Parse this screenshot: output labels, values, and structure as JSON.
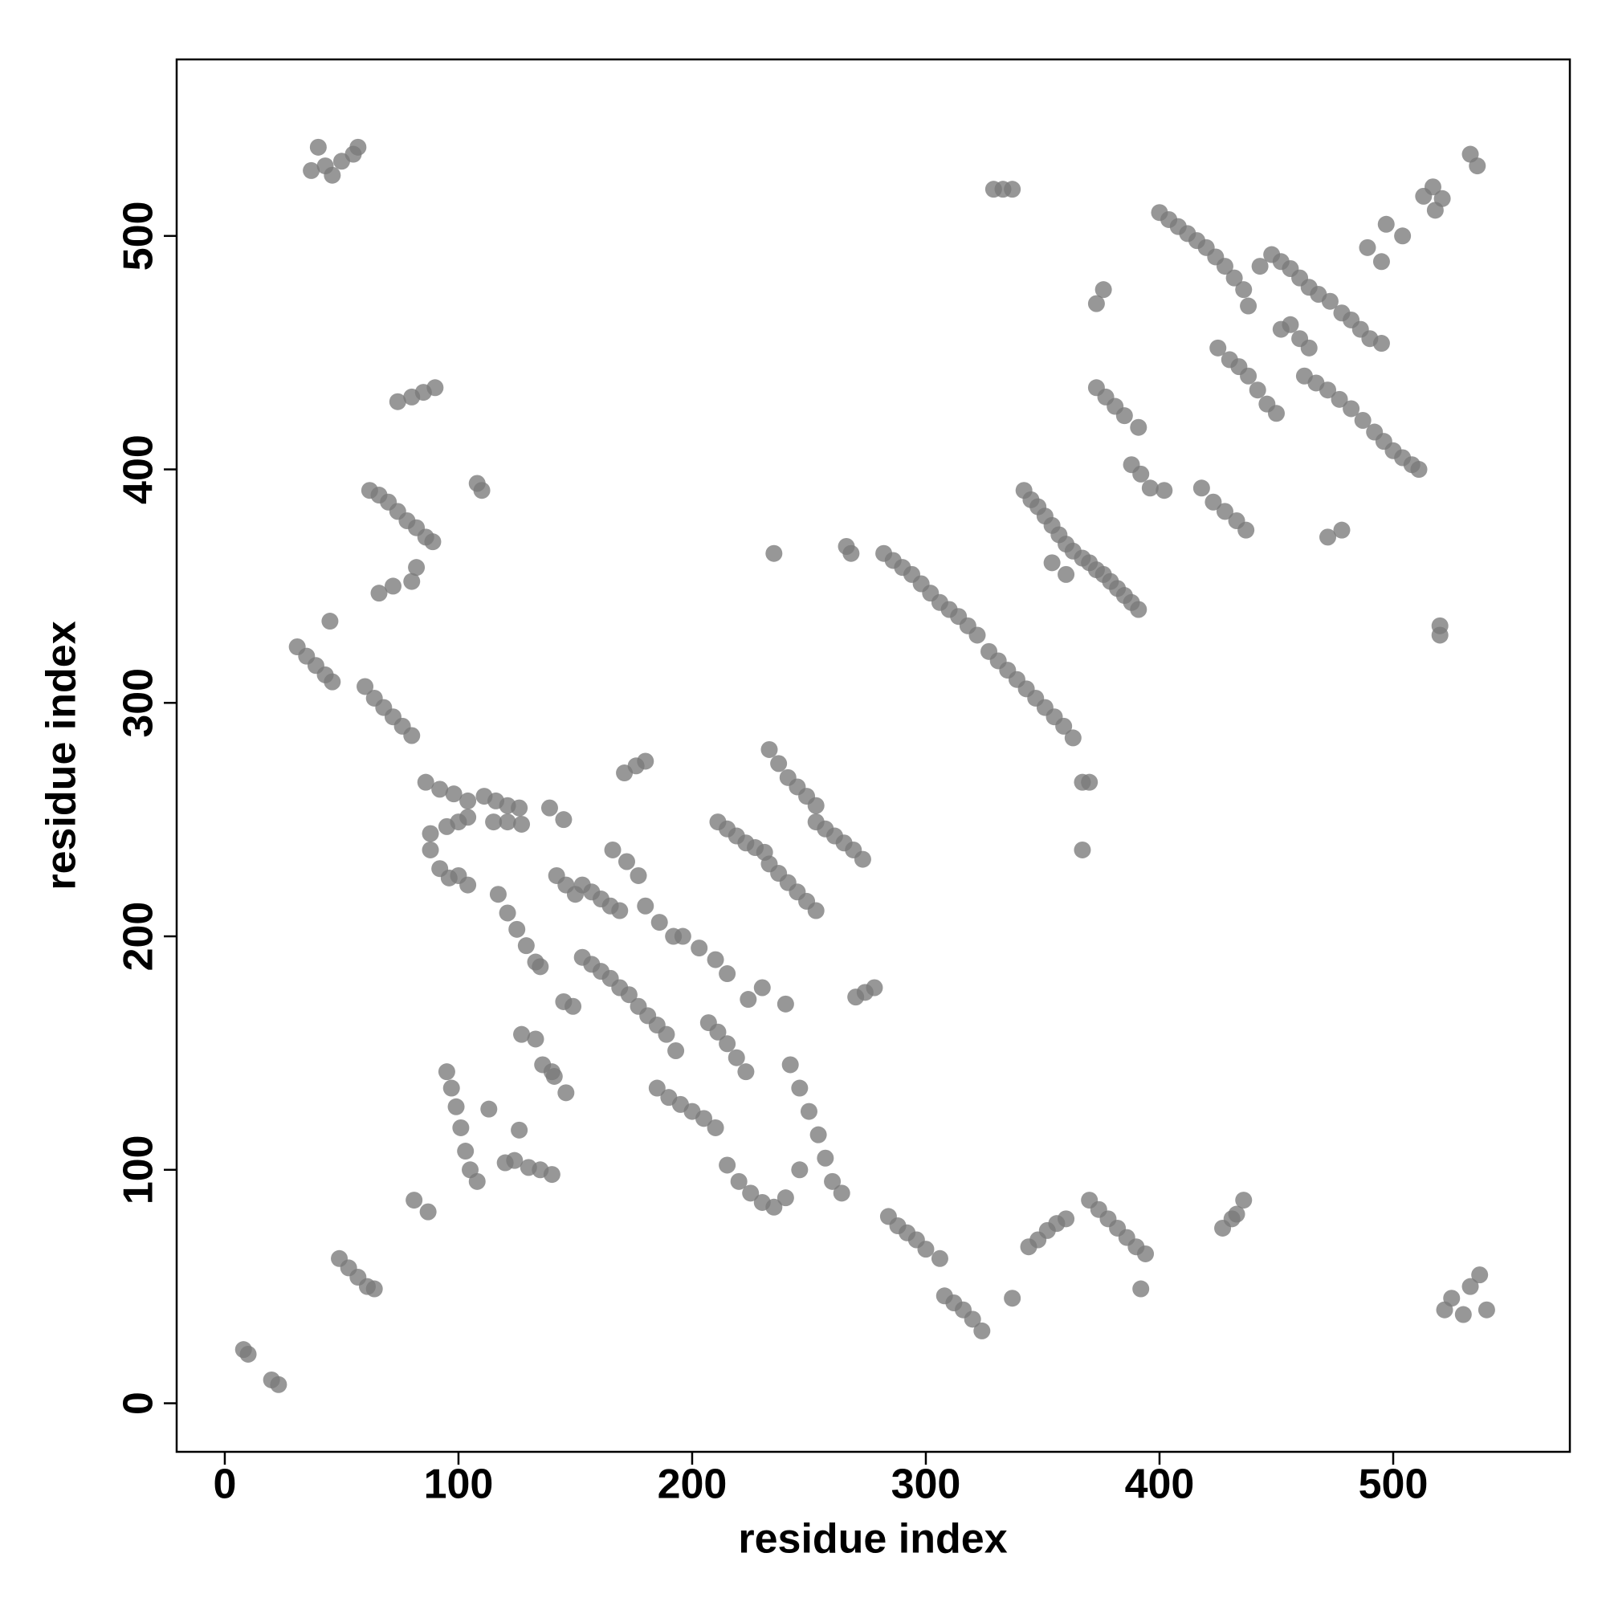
{
  "chart_data": {
    "type": "scatter",
    "x_label": "residue index",
    "y_label": "residue index",
    "color": "#7a7a7a",
    "xlim": [
      -20.6,
      575.6
    ],
    "ylim": [
      -20.8,
      575.6
    ],
    "xticks": [
      0,
      100,
      200,
      300,
      400,
      500
    ],
    "yticks": [
      0,
      100,
      200,
      300,
      400,
      500
    ],
    "x": [
      8,
      10,
      20,
      23,
      37,
      40,
      43,
      46,
      50,
      55,
      57,
      522,
      525,
      530,
      533,
      537,
      540,
      329,
      333,
      337,
      513,
      517,
      521,
      518,
      489,
      497,
      504,
      495,
      533,
      536,
      400,
      404,
      408,
      412,
      416,
      420,
      424,
      428,
      432,
      436,
      438,
      443,
      448,
      452,
      456,
      460,
      464,
      468,
      473,
      478,
      482,
      486,
      490,
      495,
      425,
      430,
      434,
      438,
      442,
      446,
      450,
      452,
      456,
      460,
      464,
      462,
      467,
      472,
      477,
      482,
      487,
      492,
      496,
      500,
      504,
      508,
      511,
      373,
      376,
      373,
      377,
      381,
      385,
      391,
      388,
      392,
      396,
      402,
      418,
      423,
      428,
      433,
      437,
      472,
      478,
      342,
      345,
      348,
      351,
      354,
      357,
      360,
      363,
      367,
      370,
      373,
      376,
      379,
      382,
      385,
      388,
      391,
      354,
      360,
      520,
      520,
      235,
      266,
      268,
      282,
      286,
      290,
      294,
      298,
      302,
      306,
      310,
      314,
      318,
      322,
      327,
      331,
      335,
      339,
      343,
      347,
      351,
      355,
      359,
      363,
      367,
      370,
      367,
      108,
      110,
      62,
      66,
      70,
      74,
      78,
      82,
      86,
      89,
      66,
      72,
      80,
      82,
      45,
      31,
      35,
      39,
      43,
      46,
      60,
      64,
      68,
      72,
      76,
      80,
      74,
      80,
      85,
      90,
      86,
      92,
      98,
      104,
      88,
      92,
      96,
      100,
      104,
      88,
      95,
      100,
      104,
      111,
      116,
      121,
      126,
      115,
      121,
      127,
      139,
      145,
      142,
      146,
      150,
      117,
      121,
      125,
      129,
      133,
      135,
      153,
      157,
      161,
      165,
      169,
      166,
      172,
      177,
      171,
      176,
      180,
      153,
      157,
      161,
      165,
      169,
      173,
      177,
      181,
      185,
      189,
      193,
      145,
      149,
      127,
      133,
      140,
      136,
      141,
      146,
      95,
      97,
      99,
      101,
      103,
      105,
      108,
      113,
      120,
      126,
      124,
      130,
      135,
      140,
      185,
      190,
      195,
      200,
      205,
      210,
      180,
      186,
      192,
      196,
      203,
      210,
      215,
      207,
      211,
      215,
      219,
      223,
      211,
      215,
      219,
      223,
      227,
      231,
      233,
      237,
      241,
      245,
      249,
      253,
      253,
      257,
      261,
      265,
      269,
      273,
      233,
      237,
      241,
      245,
      249,
      253,
      224,
      230,
      240,
      270,
      274,
      278,
      215,
      220,
      225,
      230,
      235,
      240,
      246,
      242,
      246,
      250,
      254,
      257,
      260,
      264,
      284,
      288,
      292,
      296,
      300,
      306,
      308,
      312,
      316,
      320,
      324,
      337,
      344,
      348,
      352,
      356,
      360,
      370,
      374,
      378,
      382,
      386,
      390,
      394,
      392,
      427,
      431,
      433,
      436,
      49,
      53,
      57,
      61,
      64,
      81,
      87
    ],
    "y": [
      23,
      21,
      10,
      8,
      528,
      538,
      530,
      526,
      532,
      535,
      538,
      40,
      45,
      38,
      50,
      55,
      40,
      520,
      520,
      520,
      517,
      521,
      516,
      511,
      495,
      505,
      500,
      489,
      535,
      530,
      510,
      507,
      504,
      501,
      498,
      495,
      491,
      487,
      482,
      477,
      470,
      487,
      492,
      489,
      486,
      482,
      478,
      475,
      472,
      467,
      464,
      460,
      456,
      454,
      452,
      447,
      444,
      440,
      434,
      428,
      424,
      460,
      462,
      456,
      452,
      440,
      437,
      434,
      430,
      426,
      421,
      416,
      412,
      408,
      405,
      402,
      400,
      471,
      477,
      435,
      431,
      427,
      423,
      418,
      402,
      398,
      392,
      391,
      392,
      386,
      382,
      378,
      374,
      371,
      374,
      391,
      387,
      384,
      380,
      376,
      372,
      368,
      365,
      362,
      360,
      357,
      355,
      352,
      349,
      346,
      343,
      340,
      360,
      355,
      333,
      329,
      364,
      367,
      364,
      364,
      361,
      358,
      355,
      351,
      347,
      343,
      340,
      337,
      333,
      329,
      322,
      318,
      314,
      310,
      306,
      302,
      298,
      294,
      290,
      285,
      266,
      266,
      237,
      394,
      391,
      391,
      389,
      386,
      382,
      378,
      375,
      371,
      369,
      347,
      350,
      352,
      358,
      335,
      324,
      320,
      316,
      312,
      309,
      307,
      302,
      298,
      294,
      290,
      286,
      429,
      431,
      433,
      435,
      266,
      263,
      261,
      258,
      237,
      229,
      225,
      226,
      222,
      244,
      247,
      249,
      251,
      260,
      258,
      256,
      255,
      249,
      249,
      248,
      255,
      250,
      226,
      222,
      218,
      218,
      210,
      203,
      196,
      189,
      187,
      222,
      219,
      216,
      213,
      211,
      237,
      232,
      226,
      270,
      273,
      275,
      191,
      188,
      185,
      182,
      178,
      175,
      170,
      166,
      162,
      158,
      151,
      172,
      170,
      158,
      156,
      142,
      145,
      140,
      133,
      142,
      135,
      127,
      118,
      108,
      100,
      95,
      126,
      103,
      117,
      104,
      101,
      100,
      98,
      135,
      131,
      128,
      125,
      122,
      118,
      213,
      206,
      200,
      200,
      195,
      190,
      184,
      163,
      159,
      154,
      148,
      142,
      249,
      246,
      243,
      240,
      238,
      236,
      280,
      274,
      268,
      264,
      260,
      256,
      249,
      246,
      243,
      240,
      237,
      233,
      231,
      227,
      223,
      219,
      215,
      211,
      173,
      178,
      171,
      174,
      176,
      178,
      102,
      95,
      90,
      86,
      84,
      88,
      100,
      145,
      135,
      125,
      115,
      105,
      95,
      90,
      80,
      76,
      73,
      70,
      66,
      62,
      46,
      43,
      40,
      36,
      31,
      45,
      67,
      70,
      74,
      77,
      79,
      87,
      83,
      79,
      75,
      71,
      67,
      64,
      49,
      75,
      79,
      81,
      87,
      62,
      58,
      54,
      50,
      49,
      87,
      82
    ]
  }
}
